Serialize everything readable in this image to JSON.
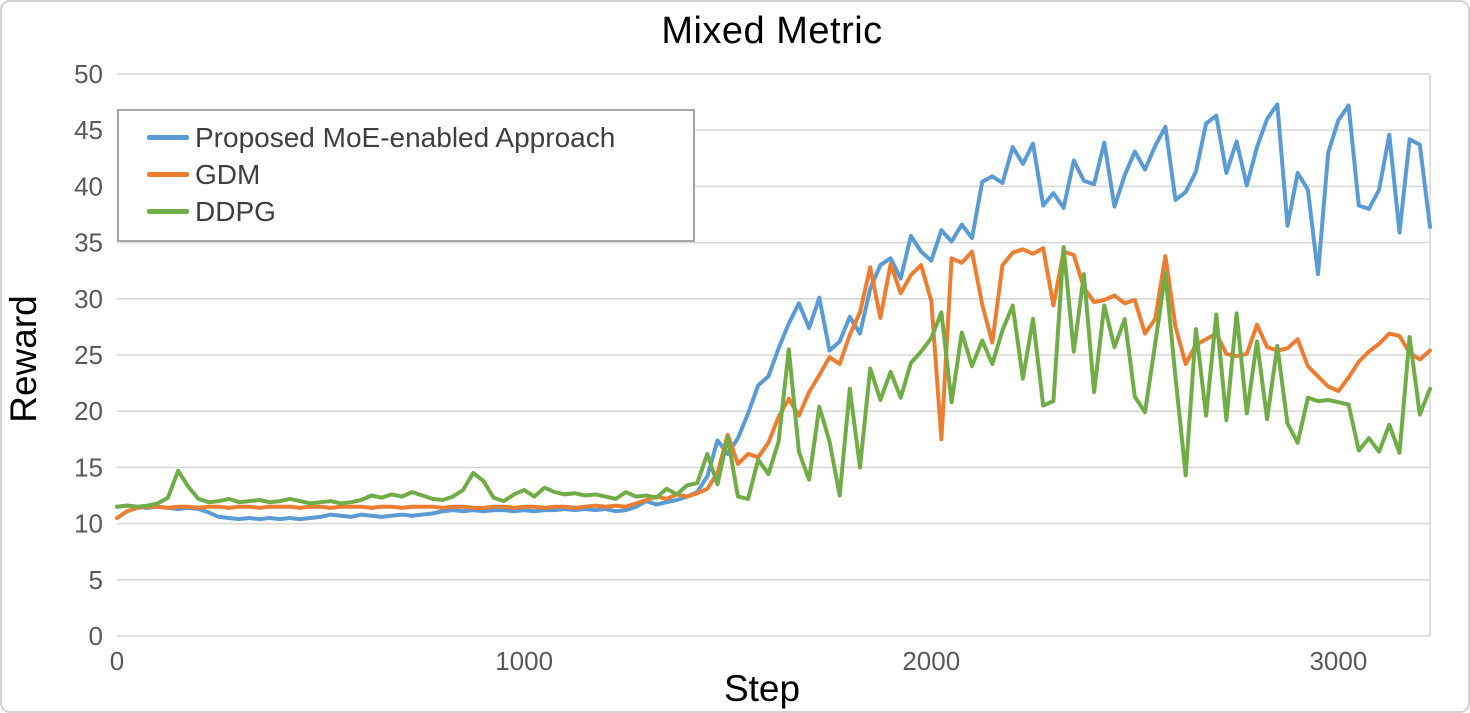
{
  "chart_data": {
    "type": "line",
    "title": "Mixed Metric",
    "xlabel": "Step",
    "ylabel": "Reward",
    "xlim": [
      0,
      3225
    ],
    "ylim": [
      0,
      50
    ],
    "xticks": [
      0,
      1000,
      2000,
      3000
    ],
    "yticks": [
      0,
      5,
      10,
      15,
      20,
      25,
      30,
      35,
      40,
      45,
      50
    ],
    "grid": "horizontal",
    "grid_color": "#d9d9d9",
    "tick_label_color": "#595959",
    "legend_position": "top-left-inside",
    "x": [
      0,
      25,
      50,
      75,
      100,
      125,
      150,
      175,
      200,
      225,
      250,
      275,
      300,
      325,
      350,
      375,
      400,
      425,
      450,
      475,
      500,
      525,
      550,
      575,
      600,
      625,
      650,
      675,
      700,
      725,
      750,
      775,
      800,
      825,
      850,
      875,
      900,
      925,
      950,
      975,
      1000,
      1025,
      1050,
      1075,
      1100,
      1125,
      1150,
      1175,
      1200,
      1225,
      1250,
      1275,
      1300,
      1325,
      1350,
      1375,
      1400,
      1425,
      1450,
      1475,
      1500,
      1525,
      1550,
      1575,
      1600,
      1625,
      1650,
      1675,
      1700,
      1725,
      1750,
      1775,
      1800,
      1825,
      1850,
      1875,
      1900,
      1925,
      1950,
      1975,
      2000,
      2025,
      2050,
      2075,
      2100,
      2125,
      2150,
      2175,
      2200,
      2225,
      2250,
      2275,
      2300,
      2325,
      2350,
      2375,
      2400,
      2425,
      2450,
      2475,
      2500,
      2525,
      2550,
      2575,
      2600,
      2625,
      2650,
      2675,
      2700,
      2725,
      2750,
      2775,
      2800,
      2825,
      2850,
      2875,
      2900,
      2925,
      2950,
      2975,
      3000,
      3025,
      3050,
      3075,
      3100,
      3125,
      3150,
      3175,
      3200,
      3225
    ],
    "series": [
      {
        "name": "Proposed MoE-enabled Approach",
        "color": "#5B9BD5",
        "values": [
          11.5,
          11.6,
          11.5,
          11.4,
          11.5,
          11.4,
          11.3,
          11.4,
          11.3,
          11.0,
          10.6,
          10.5,
          10.4,
          10.5,
          10.4,
          10.5,
          10.4,
          10.5,
          10.4,
          10.5,
          10.6,
          10.8,
          10.7,
          10.6,
          10.8,
          10.7,
          10.6,
          10.7,
          10.8,
          10.7,
          10.8,
          10.9,
          11.1,
          11.2,
          11.1,
          11.2,
          11.1,
          11.2,
          11.2,
          11.1,
          11.2,
          11.1,
          11.2,
          11.2,
          11.3,
          11.2,
          11.3,
          11.2,
          11.3,
          11.1,
          11.2,
          11.5,
          12.0,
          11.7,
          11.9,
          12.1,
          12.4,
          12.8,
          14.2,
          17.4,
          16.2,
          17.6,
          19.8,
          22.3,
          23.1,
          25.6,
          27.8,
          29.6,
          27.4,
          30.1,
          25.4,
          26.2,
          28.4,
          26.9,
          30.9,
          33.0,
          33.6,
          31.8,
          35.6,
          34.2,
          33.4,
          36.1,
          35.1,
          36.6,
          35.4,
          40.4,
          40.9,
          40.3,
          43.5,
          42.0,
          43.8,
          38.3,
          39.4,
          38.1,
          42.3,
          40.5,
          40.2,
          43.9,
          38.2,
          41.0,
          43.1,
          41.5,
          43.6,
          45.3,
          38.8,
          39.5,
          41.3,
          45.6,
          46.3,
          41.2,
          44.0,
          40.1,
          43.5,
          46.0,
          47.3,
          36.5,
          41.2,
          39.7,
          32.2,
          43.0,
          45.9,
          47.2,
          38.3,
          38.0,
          39.7,
          44.6,
          35.9,
          44.2,
          43.7,
          36.4
        ]
      },
      {
        "name": "GDM",
        "color": "#ED7D31",
        "values": [
          10.5,
          11.1,
          11.4,
          11.5,
          11.5,
          11.4,
          11.5,
          11.5,
          11.4,
          11.5,
          11.5,
          11.4,
          11.5,
          11.5,
          11.4,
          11.5,
          11.5,
          11.5,
          11.4,
          11.5,
          11.5,
          11.4,
          11.5,
          11.5,
          11.5,
          11.4,
          11.5,
          11.5,
          11.4,
          11.5,
          11.5,
          11.5,
          11.4,
          11.5,
          11.5,
          11.4,
          11.4,
          11.5,
          11.5,
          11.4,
          11.5,
          11.5,
          11.4,
          11.5,
          11.5,
          11.4,
          11.5,
          11.6,
          11.5,
          11.6,
          11.5,
          11.8,
          12.1,
          12.4,
          12.2,
          12.6,
          12.4,
          12.7,
          13.1,
          14.5,
          17.9,
          15.3,
          16.2,
          15.9,
          17.2,
          19.5,
          21.1,
          19.6,
          21.7,
          23.2,
          24.8,
          24.2,
          26.8,
          28.8,
          32.8,
          28.3,
          33.1,
          30.5,
          32.1,
          33.0,
          29.8,
          17.5,
          33.6,
          33.2,
          34.2,
          29.5,
          26.1,
          33.0,
          34.1,
          34.4,
          34.0,
          34.5,
          29.4,
          34.2,
          33.9,
          31.0,
          29.7,
          29.9,
          30.3,
          29.6,
          29.9,
          26.9,
          28.2,
          33.8,
          27.5,
          24.2,
          25.9,
          26.4,
          26.9,
          25.1,
          24.9,
          25.1,
          27.7,
          25.7,
          25.4,
          25.6,
          26.4,
          24.0,
          23.1,
          22.2,
          21.8,
          23.0,
          24.4,
          25.3,
          26.0,
          26.9,
          26.7,
          25.2,
          24.6,
          25.4
        ]
      },
      {
        "name": "DDPG",
        "color": "#70AD47",
        "values": [
          11.5,
          11.6,
          11.5,
          11.6,
          11.8,
          12.3,
          14.7,
          13.3,
          12.2,
          11.9,
          12.0,
          12.2,
          11.9,
          12.0,
          12.1,
          11.9,
          12.0,
          12.2,
          12.0,
          11.8,
          11.9,
          12.0,
          11.8,
          11.9,
          12.1,
          12.5,
          12.3,
          12.6,
          12.4,
          12.8,
          12.5,
          12.2,
          12.1,
          12.4,
          13.0,
          14.5,
          13.8,
          12.3,
          12.0,
          12.6,
          13.0,
          12.4,
          13.2,
          12.8,
          12.6,
          12.7,
          12.5,
          12.6,
          12.4,
          12.2,
          12.8,
          12.4,
          12.5,
          12.3,
          13.1,
          12.6,
          13.4,
          13.6,
          16.2,
          13.5,
          17.7,
          12.4,
          12.2,
          15.7,
          14.4,
          17.3,
          25.5,
          16.4,
          13.9,
          20.4,
          17.3,
          12.5,
          22.0,
          15.0,
          23.8,
          21.0,
          23.5,
          21.2,
          24.3,
          25.3,
          26.5,
          28.8,
          20.8,
          27.0,
          24.0,
          26.3,
          24.2,
          27.2,
          29.4,
          22.9,
          28.2,
          20.5,
          20.9,
          34.6,
          25.3,
          32.2,
          21.7,
          29.4,
          25.7,
          28.2,
          21.3,
          19.9,
          26.0,
          32.3,
          23.0,
          14.3,
          27.3,
          19.6,
          28.6,
          19.2,
          28.7,
          19.8,
          26.2,
          19.3,
          25.8,
          18.9,
          17.2,
          21.2,
          20.9,
          21.0,
          20.8,
          20.6,
          16.5,
          17.6,
          16.4,
          18.8,
          16.3,
          26.6,
          19.7,
          22.0
        ]
      }
    ]
  }
}
